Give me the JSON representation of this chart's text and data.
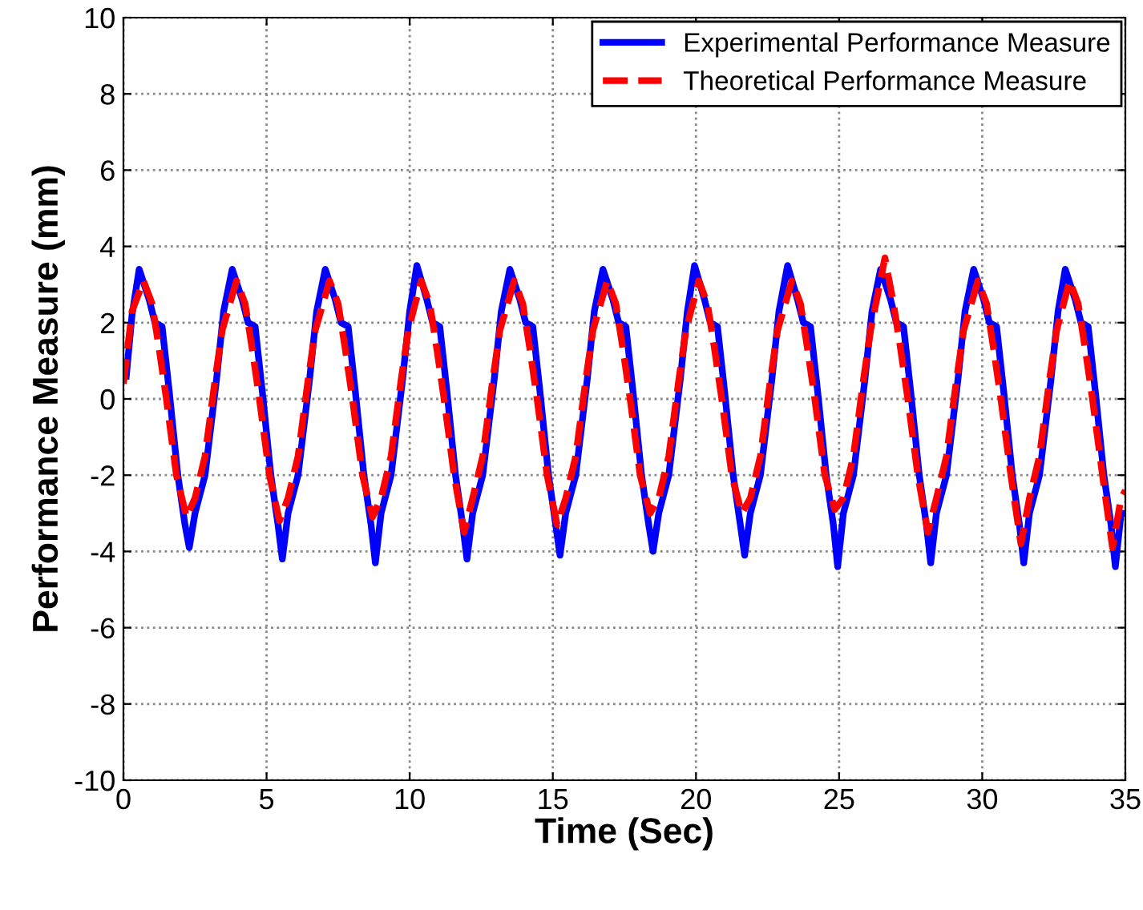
{
  "chart_data": {
    "type": "line",
    "xlabel": "Time (Sec)",
    "ylabel": "Performance Measure (mm)",
    "xlim": [
      0,
      35
    ],
    "ylim": [
      -10,
      10
    ],
    "xticks": [
      0,
      5,
      10,
      15,
      20,
      25,
      30,
      35
    ],
    "yticks": [
      -10,
      -8,
      -6,
      -4,
      -2,
      0,
      2,
      4,
      6,
      8,
      10
    ],
    "grid": true,
    "legend": "top right",
    "series": [
      {
        "name": "Experimental Performance Measure",
        "color": "#0000ff",
        "line_style": "solid",
        "x": [
          0.1,
          0.3,
          0.55,
          0.9,
          1.1,
          1.35,
          1.6,
          1.9,
          2.15,
          2.3,
          2.5,
          2.85,
          3.25,
          3.5,
          3.8,
          4.15,
          4.35,
          4.6,
          4.85,
          5.15,
          5.4,
          5.55,
          5.75,
          6.1,
          6.5,
          6.75,
          7.05,
          7.4,
          7.6,
          7.85,
          8.1,
          8.4,
          8.65,
          8.8,
          9.0,
          9.35,
          9.75,
          10.0,
          10.25,
          10.6,
          10.8,
          11.05,
          11.3,
          11.6,
          11.85,
          12.0,
          12.2,
          12.55,
          12.95,
          13.2,
          13.5,
          13.85,
          14.05,
          14.3,
          14.55,
          14.85,
          15.1,
          15.25,
          15.45,
          15.8,
          16.2,
          16.45,
          16.75,
          17.1,
          17.3,
          17.55,
          17.8,
          18.1,
          18.35,
          18.5,
          18.7,
          19.05,
          19.45,
          19.7,
          19.95,
          20.3,
          20.5,
          20.75,
          21.0,
          21.3,
          21.55,
          21.7,
          21.9,
          22.25,
          22.65,
          22.9,
          23.2,
          23.55,
          23.75,
          24.0,
          24.25,
          24.55,
          24.8,
          24.95,
          25.15,
          25.5,
          25.9,
          26.15,
          26.45,
          26.8,
          27.0,
          27.25,
          27.5,
          27.8,
          28.05,
          28.2,
          28.4,
          28.75,
          29.15,
          29.4,
          29.7,
          30.05,
          30.25,
          30.5,
          30.75,
          31.05,
          31.3,
          31.45,
          31.65,
          32.0,
          32.4,
          32.65,
          32.9,
          33.25,
          33.45,
          33.7,
          33.95,
          34.25,
          34.5,
          34.65,
          34.85,
          35.0
        ],
        "values": [
          0.6,
          2.2,
          3.4,
          2.6,
          2.0,
          1.9,
          0.2,
          -2.0,
          -3.3,
          -3.9,
          -3.0,
          -2.0,
          0.5,
          2.3,
          3.4,
          2.6,
          2.0,
          1.9,
          0.2,
          -2.0,
          -3.3,
          -4.2,
          -3.0,
          -2.0,
          0.5,
          2.3,
          3.4,
          2.6,
          2.0,
          1.9,
          0.2,
          -2.0,
          -3.3,
          -4.3,
          -3.0,
          -2.0,
          0.5,
          2.3,
          3.5,
          2.6,
          2.0,
          1.9,
          0.2,
          -2.0,
          -3.3,
          -4.2,
          -3.0,
          -2.0,
          0.5,
          2.3,
          3.4,
          2.6,
          2.0,
          1.9,
          0.2,
          -2.0,
          -3.3,
          -4.1,
          -3.0,
          -2.0,
          0.5,
          2.3,
          3.4,
          2.6,
          2.0,
          1.9,
          0.2,
          -2.0,
          -3.3,
          -4.0,
          -3.0,
          -2.0,
          0.5,
          2.3,
          3.5,
          2.6,
          2.0,
          1.9,
          0.2,
          -2.0,
          -3.3,
          -4.1,
          -3.0,
          -2.0,
          0.5,
          2.3,
          3.5,
          2.6,
          2.0,
          1.9,
          0.2,
          -2.0,
          -3.3,
          -4.4,
          -3.0,
          -2.0,
          0.5,
          2.3,
          3.4,
          2.6,
          2.0,
          1.9,
          0.2,
          -2.0,
          -3.3,
          -4.3,
          -3.0,
          -2.0,
          0.5,
          2.3,
          3.4,
          2.6,
          2.0,
          1.9,
          0.2,
          -2.0,
          -3.3,
          -4.3,
          -3.0,
          -2.0,
          0.5,
          2.3,
          3.4,
          2.6,
          2.0,
          1.9,
          0.2,
          -2.0,
          -3.3,
          -4.4,
          -3.0,
          -3.0
        ]
      },
      {
        "name": "Theoretical Performance Measure",
        "color": "#ff0000",
        "line_style": "dashed",
        "x": [
          0.0,
          0.3,
          0.7,
          1.0,
          1.25,
          1.5,
          1.85,
          2.2,
          2.5,
          2.85,
          3.2,
          3.45,
          3.95,
          4.25,
          4.5,
          4.75,
          5.1,
          5.45,
          5.75,
          6.1,
          6.45,
          6.7,
          7.2,
          7.5,
          7.75,
          8.0,
          8.35,
          8.7,
          9.0,
          9.35,
          9.7,
          9.95,
          10.4,
          10.7,
          10.95,
          11.2,
          11.55,
          11.9,
          12.2,
          12.55,
          12.9,
          13.15,
          13.65,
          13.95,
          14.2,
          14.45,
          14.8,
          15.15,
          15.45,
          15.8,
          16.15,
          16.4,
          16.9,
          17.2,
          17.45,
          17.7,
          18.05,
          18.4,
          18.7,
          19.05,
          19.4,
          19.65,
          20.1,
          20.4,
          20.65,
          20.9,
          21.25,
          21.6,
          21.9,
          22.25,
          22.6,
          22.85,
          23.35,
          23.65,
          23.9,
          24.15,
          24.5,
          24.85,
          25.15,
          25.5,
          25.85,
          26.1,
          26.6,
          26.9,
          27.15,
          27.4,
          27.75,
          28.1,
          28.4,
          28.75,
          29.1,
          29.35,
          29.85,
          30.15,
          30.4,
          30.65,
          31.0,
          31.35,
          31.65,
          32.0,
          32.35,
          32.6,
          33.05,
          33.35,
          33.6,
          33.85,
          34.2,
          34.55,
          34.85,
          35.0
        ],
        "values": [
          0.4,
          2.3,
          3.1,
          2.5,
          1.3,
          0.0,
          -2.0,
          -3.1,
          -2.6,
          -1.5,
          0.5,
          1.8,
          3.1,
          2.5,
          1.3,
          0.0,
          -2.0,
          -3.2,
          -2.6,
          -1.5,
          0.5,
          1.8,
          3.1,
          2.5,
          1.3,
          0.0,
          -2.0,
          -3.1,
          -2.6,
          -1.5,
          0.5,
          1.8,
          3.1,
          2.5,
          1.3,
          0.0,
          -2.0,
          -3.5,
          -2.6,
          -1.5,
          0.5,
          1.8,
          3.1,
          2.5,
          1.3,
          0.0,
          -2.0,
          -3.3,
          -2.6,
          -1.5,
          0.5,
          1.8,
          3.1,
          2.5,
          1.3,
          0.0,
          -2.0,
          -3.0,
          -2.6,
          -1.5,
          0.5,
          1.8,
          3.1,
          2.5,
          1.3,
          0.0,
          -2.0,
          -3.0,
          -2.6,
          -1.5,
          0.5,
          1.8,
          3.1,
          2.5,
          1.3,
          0.0,
          -2.0,
          -2.9,
          -2.6,
          -1.5,
          0.5,
          1.8,
          3.7,
          2.5,
          1.3,
          0.0,
          -2.0,
          -3.5,
          -2.6,
          -1.5,
          0.5,
          1.8,
          3.1,
          2.5,
          1.3,
          0.0,
          -2.0,
          -3.8,
          -2.6,
          -1.5,
          0.5,
          1.8,
          3.1,
          2.5,
          1.3,
          0.0,
          -2.0,
          -3.9,
          -2.6,
          -2.4
        ]
      }
    ]
  }
}
